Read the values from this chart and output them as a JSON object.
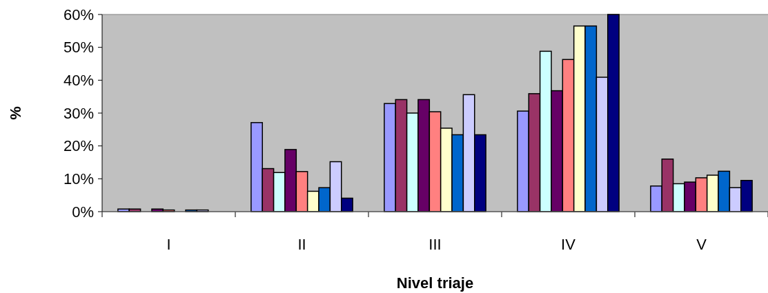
{
  "chart_data": {
    "type": "bar",
    "xlabel": "Nivel triaje",
    "ylabel": "%",
    "categories": [
      "I",
      "II",
      "III",
      "IV",
      "V"
    ],
    "series": [
      {
        "color": "#9999ff",
        "values": [
          0.8,
          27.1,
          32.9,
          30.6,
          7.8
        ]
      },
      {
        "color": "#993366",
        "values": [
          0.8,
          13.1,
          34.1,
          35.9,
          16.0
        ]
      },
      {
        "color": "#ccffff",
        "values": [
          null,
          11.9,
          30.0,
          48.8,
          8.5
        ]
      },
      {
        "color": "#660066",
        "values": [
          0.8,
          18.9,
          34.1,
          36.8,
          9.0
        ]
      },
      {
        "color": "#ff8080",
        "values": [
          0.5,
          12.2,
          30.4,
          46.3,
          10.3
        ]
      },
      {
        "color": "#ffffcc",
        "values": [
          0,
          6.2,
          25.4,
          56.5,
          11.1
        ]
      },
      {
        "color": "#0066cc",
        "values": [
          0.5,
          7.3,
          23.4,
          56.5,
          12.3
        ]
      },
      {
        "color": "#ccccff",
        "values": [
          0.5,
          15.2,
          35.6,
          40.9,
          7.3
        ]
      },
      {
        "color": "#000080",
        "values": [
          0,
          4.1,
          23.4,
          60,
          9.5
        ]
      }
    ],
    "ylim": [
      0,
      60
    ],
    "yticks": [
      {
        "value": 0,
        "label": "0%"
      },
      {
        "value": 10,
        "label": "10%"
      },
      {
        "value": 20,
        "label": "20%"
      },
      {
        "value": 30,
        "label": "30%"
      },
      {
        "value": 40,
        "label": "40%"
      },
      {
        "value": 50,
        "label": "50%"
      },
      {
        "value": 60,
        "label": "60%"
      }
    ],
    "grid": false
  }
}
